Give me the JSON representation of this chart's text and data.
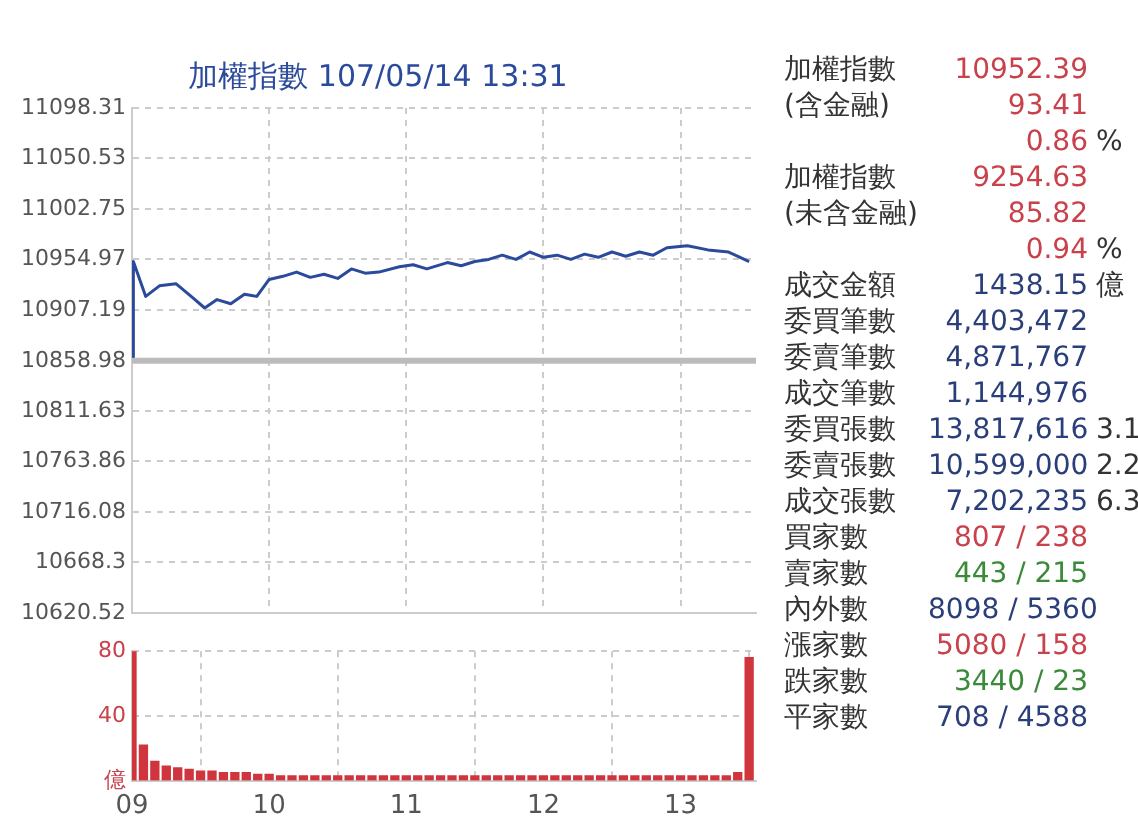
{
  "chart_data": [
    {
      "type": "line",
      "title": "加權指數 107/05/14 13:31",
      "x": [
        9.0,
        9.01,
        9.1,
        9.2,
        9.32,
        9.44,
        9.53,
        9.62,
        9.72,
        9.82,
        9.91,
        10.0,
        10.1,
        10.2,
        10.3,
        10.4,
        10.5,
        10.6,
        10.7,
        10.8,
        10.95,
        11.05,
        11.15,
        11.3,
        11.4,
        11.5,
        11.6,
        11.7,
        11.8,
        11.9,
        12.0,
        12.1,
        12.2,
        12.3,
        12.4,
        12.5,
        12.6,
        12.7,
        12.8,
        12.9,
        13.05,
        13.2,
        13.35,
        13.5
      ],
      "series": [
        {
          "color": "#2b4a9b",
          "values": [
            10859,
            10953,
            10920,
            10930,
            10932,
            10919,
            10909,
            10917,
            10913,
            10922,
            10920,
            10936,
            10939,
            10943,
            10938,
            10941,
            10937,
            10946,
            10942,
            10943,
            10948,
            10950,
            10946,
            10952,
            10949,
            10953,
            10955,
            10959,
            10955,
            10962,
            10957,
            10959,
            10955,
            10960,
            10957,
            10962,
            10958,
            10962,
            10959,
            10966,
            10968,
            10964,
            10962,
            10953
          ]
        }
      ],
      "xlim": [
        9,
        13.55
      ],
      "xticks": [
        9,
        10,
        11,
        12,
        13
      ],
      "ylim": [
        10620.52,
        11098.31
      ],
      "yticks": [
        10620.52,
        10668.3,
        10716.08,
        10763.86,
        10811.63,
        10858.98,
        10907.19,
        10954.97,
        11002.75,
        11050.53,
        11098.31
      ],
      "ref_lines": [
        {
          "axis": "y",
          "value": 10858.98,
          "color": "#bbbbbb"
        }
      ],
      "grid": true,
      "tick_labels": "y",
      "legend": false
    },
    {
      "type": "bar",
      "x": [
        9.0,
        9.0833,
        9.1667,
        9.25,
        9.3333,
        9.4167,
        9.5,
        9.5833,
        9.6667,
        9.75,
        9.8333,
        9.9167,
        10.0,
        10.0833,
        10.1667,
        10.25,
        10.3333,
        10.4167,
        10.5,
        10.5833,
        10.6667,
        10.75,
        10.8333,
        10.9167,
        11.0,
        11.0833,
        11.1667,
        11.25,
        11.3333,
        11.4167,
        11.5,
        11.5833,
        11.6667,
        11.75,
        11.8333,
        11.9167,
        12.0,
        12.0833,
        12.1667,
        12.25,
        12.3333,
        12.4167,
        12.5,
        12.5833,
        12.6667,
        12.75,
        12.8333,
        12.9167,
        13.0,
        13.0833,
        13.1667,
        13.25,
        13.3333,
        13.4167,
        13.5
      ],
      "series": [
        {
          "color": "#d0343c",
          "values": [
            80,
            22,
            12,
            9,
            8,
            7,
            6,
            6,
            5,
            5,
            5,
            4,
            4,
            3,
            3,
            3,
            3,
            3,
            3,
            3,
            3,
            3,
            3,
            3,
            3,
            3,
            3,
            3,
            3,
            3,
            3,
            3,
            3,
            3,
            3,
            3,
            3,
            3,
            3,
            3,
            3,
            3,
            3,
            3,
            3,
            3,
            3,
            3,
            3,
            3,
            3,
            3,
            3,
            5,
            76
          ]
        }
      ],
      "xlim": [
        9,
        13.55
      ],
      "xticks": [
        {
          "value": 9,
          "label": "09"
        },
        10,
        11,
        12,
        13
      ],
      "ylim": [
        0,
        80
      ],
      "yticks": [
        {
          "value": 0,
          "label": "億"
        },
        40,
        80
      ],
      "grid": true,
      "legend": false
    },
    {
      "type": "other",
      "annotations": [
        "加權指數\t10952.39",
        "(含金融)\t93.41",
        "\t0.86\t%",
        "加權指數\t9254.63",
        "(未含金融)\t85.82",
        "\t0.94\t%",
        "成交金額\t1438.15\t億",
        "委買筆數\t4,403,472",
        "委賣筆數\t4,871,767",
        "成交筆數\t1,144,976",
        "委買張數\t13,817,616\t3.1",
        "委賣張數\t10,599,000\t2.2",
        "成交張數\t7,202,235\t6.3",
        "買家數\t807 / 238",
        "賣家數\t443 / 215",
        "內外數\t8098 / 5360",
        "漲家數\t5080 / 158",
        "跌家數\t3440 / 23",
        "平家數\t708 / 4588"
      ],
      "colors": [
        "#c8414b",
        "#c8414b",
        "#c8414b",
        "#c8414b",
        "#c8414b",
        "#c8414b",
        "#2a3f7a",
        "#2a3f7a",
        "#2a3f7a",
        "#2a3f7a",
        "#2a3f7a",
        "#2a3f7a",
        "#2a3f7a",
        "#c8414b",
        "#3a8a3a",
        "#2a3f7a",
        "#c8414b",
        "#3a8a3a",
        "#2a3f7a"
      ]
    }
  ]
}
